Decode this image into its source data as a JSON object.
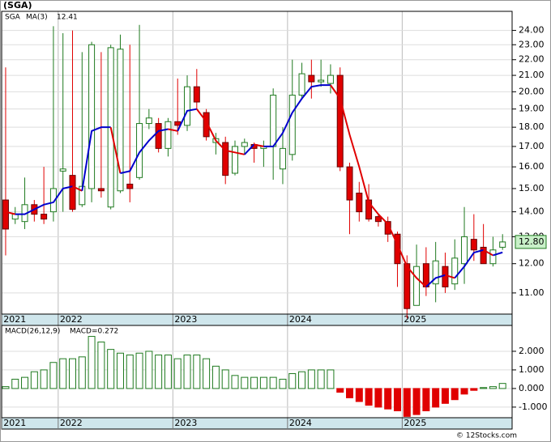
{
  "chart_data": [
    {
      "type": "candlestick",
      "title": "(SGA)",
      "name": "SGA",
      "up_color": "#1f7a1f",
      "down_color": "#e00000",
      "xlim": [
        -0.42,
        53
      ],
      "xticks": [
        {
          "value": -0.4,
          "label": "2021"
        },
        {
          "value": 5.5,
          "label": "2022"
        },
        {
          "value": 17.5,
          "label": "2023"
        },
        {
          "value": 29.5,
          "label": "2024"
        },
        {
          "value": 41.5,
          "label": "2025"
        }
      ],
      "ylim": [
        10.33,
        25.4
      ],
      "log_scale": true,
      "grid": true,
      "yticks": [
        {
          "value": 11,
          "label": "11.00"
        },
        {
          "value": 12,
          "label": "12.00"
        },
        {
          "value": 13,
          "label": "13.00"
        },
        {
          "value": 14,
          "label": "14.00"
        },
        {
          "value": 15,
          "label": "15.00"
        },
        {
          "value": 16,
          "label": "16.00"
        },
        {
          "value": 17,
          "label": "17.00"
        },
        {
          "value": 18,
          "label": "18.00"
        },
        {
          "value": 19,
          "label": "19.00"
        },
        {
          "value": 20,
          "label": "20.00"
        },
        {
          "value": 21,
          "label": "21.00"
        },
        {
          "value": 22,
          "label": "22.00"
        },
        {
          "value": 23,
          "label": "23.00"
        },
        {
          "value": 24,
          "label": "24.00"
        }
      ],
      "open": [
        14.5,
        13.7,
        13.6,
        14.3,
        13.9,
        14.0,
        15.8,
        15.6,
        14.3,
        15.0,
        15.0,
        14.2,
        14.9,
        15.2,
        15.5,
        18.2,
        18.2,
        16.9,
        18.3,
        18.1,
        20.3,
        18.8,
        17.2,
        17.2,
        15.7,
        17.0,
        17.1,
        16.9,
        17.0,
        15.9,
        16.6,
        19.8,
        21.0,
        20.6,
        20.5,
        21.0,
        16.0,
        14.8,
        14.5,
        13.8,
        13.6,
        13.1,
        12.0,
        10.6,
        12.0,
        11.3,
        11.9,
        11.3,
        12.0,
        12.9,
        12.6,
        12.0,
        12.6
      ],
      "high": [
        21.5,
        14.2,
        15.5,
        14.5,
        16.0,
        24.3,
        23.8,
        24.0,
        22.5,
        23.2,
        22.5,
        23.0,
        23.7,
        23.0,
        24.4,
        19.0,
        18.5,
        18.5,
        20.8,
        21.0,
        21.4,
        19.0,
        17.7,
        17.5,
        17.3,
        17.4,
        17.2,
        17.3,
        20.2,
        18.0,
        22.0,
        21.8,
        22.0,
        22.0,
        21.7,
        21.5,
        16.2,
        15.3,
        15.2,
        13.9,
        13.8,
        13.2,
        12.3,
        12.7,
        12.6,
        12.8,
        12.4,
        12.9,
        14.2,
        13.9,
        13.5,
        13.0,
        13.1
      ],
      "low": [
        12.3,
        13.5,
        13.3,
        13.6,
        13.5,
        13.6,
        14.0,
        14.0,
        14.2,
        14.4,
        14.6,
        14.1,
        14.8,
        14.4,
        15.4,
        17.9,
        16.7,
        16.5,
        17.6,
        17.8,
        19.0,
        17.3,
        16.6,
        15.2,
        15.6,
        16.6,
        16.2,
        16.0,
        15.4,
        15.2,
        16.3,
        19.6,
        19.6,
        20.3,
        19.9,
        15.8,
        13.1,
        13.6,
        13.6,
        13.4,
        12.8,
        11.2,
        10.2,
        10.6,
        10.9,
        10.7,
        11.0,
        11.1,
        11.3,
        12.1,
        12.0,
        11.9,
        12.5
      ],
      "close": [
        13.3,
        13.9,
        14.3,
        13.9,
        13.7,
        15.0,
        15.9,
        14.1,
        15.1,
        23.0,
        14.9,
        22.8,
        22.7,
        15.0,
        18.2,
        18.5,
        16.9,
        18.3,
        18.1,
        20.3,
        19.4,
        17.5,
        17.4,
        15.6,
        17.0,
        17.2,
        16.9,
        17.0,
        19.8,
        16.9,
        19.8,
        21.1,
        20.6,
        20.7,
        21.0,
        16.0,
        14.5,
        14.0,
        13.7,
        13.6,
        13.1,
        12.0,
        10.5,
        11.9,
        11.2,
        12.1,
        11.2,
        12.2,
        13.0,
        12.5,
        12.0,
        12.5,
        12.8
      ],
      "last_price": {
        "value": 12.8,
        "label": "12.80"
      },
      "ma": {
        "name": "MA(3)",
        "up_color": "#0000cc",
        "down_color": "#e00000",
        "values": [
          14.0,
          13.9,
          13.9,
          14.1,
          14.3,
          14.4,
          15.0,
          15.1,
          14.9,
          17.8,
          18.0,
          18.0,
          15.7,
          15.8,
          16.7,
          17.3,
          17.8,
          17.9,
          17.8,
          18.9,
          19.0,
          18.3,
          17.3,
          16.8,
          16.7,
          16.6,
          17.1,
          17.0,
          17.0,
          17.7,
          18.8,
          19.6,
          20.3,
          20.4,
          20.4,
          19.6,
          17.6,
          16.0,
          14.4,
          13.9,
          13.5,
          12.7,
          11.9,
          11.5,
          11.2,
          11.5,
          11.6,
          11.5,
          11.9,
          12.4,
          12.5,
          12.3,
          12.41
        ]
      }
    },
    {
      "type": "bar",
      "title": "MACD(26,12,9)",
      "legend": "MACD=0.272",
      "up_color": "#1f7a1f",
      "down_color": "#e00000",
      "xlim": [
        -0.42,
        53
      ],
      "xticks": [
        {
          "value": -0.4,
          "label": "2021"
        },
        {
          "value": 5.5,
          "label": "2022"
        },
        {
          "value": 17.5,
          "label": "2023"
        },
        {
          "value": 29.5,
          "label": "2024"
        },
        {
          "value": 41.5,
          "label": "2025"
        }
      ],
      "ylim": [
        -1.57,
        3.39
      ],
      "grid": true,
      "yticks": [
        {
          "value": -1,
          "label": "-1.000"
        },
        {
          "value": 0,
          "label": "0.000"
        },
        {
          "value": 1,
          "label": "1.000"
        },
        {
          "value": 2,
          "label": "2.000"
        }
      ],
      "values": [
        0.1,
        0.5,
        0.6,
        0.9,
        1.0,
        1.4,
        1.6,
        1.6,
        1.7,
        2.8,
        2.5,
        2.1,
        1.9,
        1.8,
        1.9,
        2.0,
        1.8,
        1.8,
        1.6,
        1.8,
        1.8,
        1.6,
        1.2,
        1.0,
        0.7,
        0.6,
        0.6,
        0.6,
        0.6,
        0.5,
        0.8,
        0.9,
        1.0,
        1.0,
        1.0,
        -0.2,
        -0.5,
        -0.7,
        -0.9,
        -1.0,
        -1.1,
        -1.2,
        -1.5,
        -1.4,
        -1.2,
        -1.0,
        -0.8,
        -0.6,
        -0.3,
        -0.1,
        0.05,
        0.1,
        0.272
      ]
    }
  ],
  "footer": "© 12Stocks.com"
}
